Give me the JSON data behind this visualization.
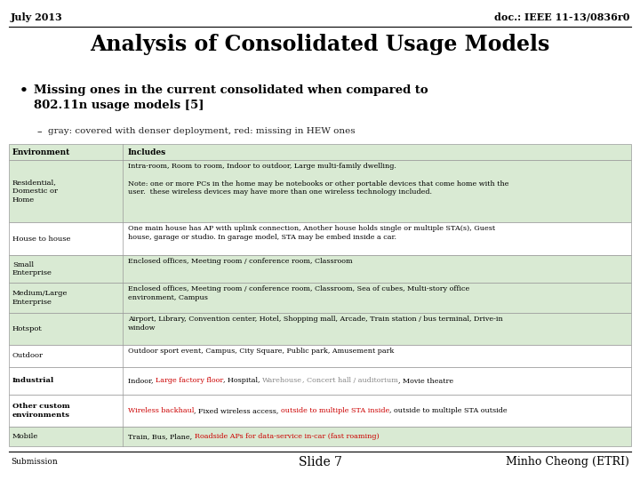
{
  "bg_color": "#ffffff",
  "header_left": "July 2013",
  "header_right": "doc.: IEEE 11-13/0836r0",
  "title": "Analysis of Consolidated Usage Models",
  "bullet_text": "Missing ones in the current consolidated when compared to\n802.11n usage models [5]",
  "sub_bullet": "gray: covered with denser deployment, red: missing in HEW ones",
  "table_header_env": "Environment",
  "table_header_inc": "Includes",
  "table_bg_light": "#d9ead3",
  "table_bg_white": "#ffffff",
  "footer_left": "Submission",
  "footer_center": "Slide 7",
  "footer_right": "Minho Cheong (ETRI)",
  "rows": [
    {
      "env": "Residential,\nDomestic or\nHome",
      "includes": "Intra-room, Room to room, Indoor to outdoor, Large multi-family dwelling.\n\nNote: one or more PCs in the home may be notebooks or other portable devices that come home with the\nuser.  these wireless devices may have more than one wireless technology included.",
      "env_bold": false,
      "bg": "light",
      "mixed": false
    },
    {
      "env": "House to house",
      "includes": "One main house has AP with uplink connection, Another house holds single or multiple STA(s), Guest\nhouse, garage or studio. In garage model, STA may be embed inside a car.",
      "env_bold": false,
      "bg": "white",
      "mixed": false
    },
    {
      "env": "Small\nEnterprise",
      "includes": "Enclosed offices, Meeting room / conference room, Classroom",
      "env_bold": false,
      "bg": "light",
      "mixed": false
    },
    {
      "env": "Medium/Large\nEnterprise",
      "includes": "Enclosed offices, Meeting room / conference room, Classroom, Sea of cubes, Multi-story office\nenvironment, Campus",
      "env_bold": false,
      "bg": "light",
      "mixed": false
    },
    {
      "env": "Hotspot",
      "includes": "Airport, Library, Convention center, Hotel, Shopping mall, Arcade, Train station / bus terminal, Drive-in\nwindow",
      "env_bold": false,
      "bg": "light",
      "mixed": false
    },
    {
      "env": "Outdoor",
      "includes": "Outdoor sport event, Campus, City Square, Public park, Amusement park",
      "env_bold": false,
      "bg": "white",
      "mixed": false
    },
    {
      "env": "Industrial",
      "env_bold": true,
      "bg": "white",
      "mixed": true,
      "segments": [
        {
          "text": "Indoor, ",
          "color": "#000000"
        },
        {
          "text": "Large factory floor",
          "color": "#cc0000"
        },
        {
          "text": ", Hospital, ",
          "color": "#000000"
        },
        {
          "text": "Warehouse",
          "color": "#888888"
        },
        {
          "text": ", Concert hall / auditorium",
          "color": "#888888"
        },
        {
          "text": ", Movie theatre",
          "color": "#000000"
        }
      ]
    },
    {
      "env": "Other custom\nenvironments",
      "env_bold": true,
      "bg": "white",
      "mixed": true,
      "segments": [
        {
          "text": "Wireless backhaul",
          "color": "#cc0000"
        },
        {
          "text": ", Fixed wireless access, ",
          "color": "#000000"
        },
        {
          "text": "outside to multiple STA inside",
          "color": "#cc0000"
        },
        {
          "text": ", outside to multiple STA outside",
          "color": "#000000"
        }
      ]
    },
    {
      "env": "Mobile",
      "env_bold": false,
      "bg": "light",
      "mixed": true,
      "segments": [
        {
          "text": "Train, Bus, Plane, ",
          "color": "#000000"
        },
        {
          "text": "Roadside APs for data-service in-car (fast roaming)",
          "color": "#cc0000"
        }
      ]
    }
  ]
}
